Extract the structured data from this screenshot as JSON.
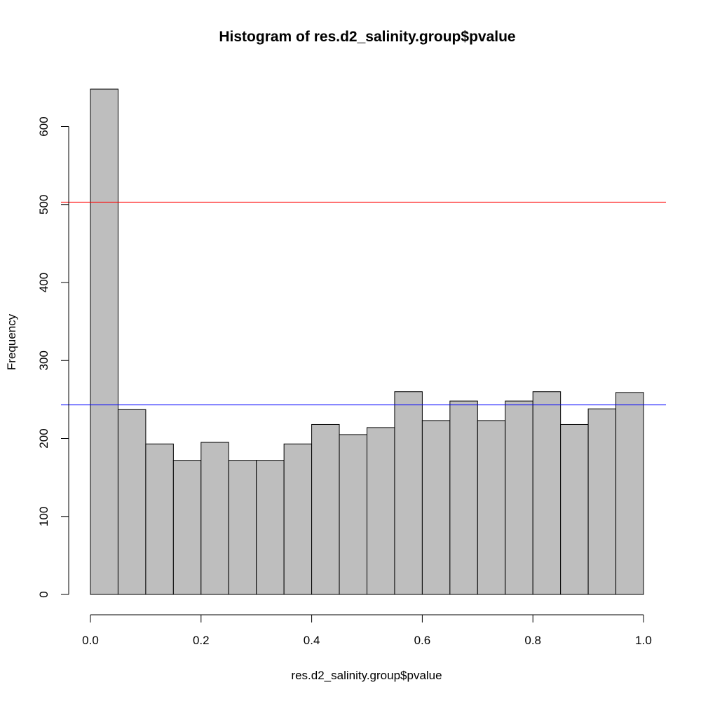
{
  "chart_data": {
    "type": "bar",
    "title": "Histogram of res.d2_salinity.group$pvalue",
    "xlabel": "res.d2_salinity.group$pvalue",
    "ylabel": "Frequency",
    "bin_edges": [
      0.0,
      0.05,
      0.1,
      0.15,
      0.2,
      0.25,
      0.3,
      0.35,
      0.4,
      0.45,
      0.5,
      0.55,
      0.6,
      0.65,
      0.7,
      0.75,
      0.8,
      0.85,
      0.9,
      0.95,
      1.0
    ],
    "values": [
      648,
      237,
      193,
      172,
      195,
      172,
      172,
      193,
      218,
      205,
      214,
      260,
      223,
      248,
      223,
      248,
      260,
      218,
      238,
      259
    ],
    "xlim": [
      0,
      1
    ],
    "ylim": [
      0,
      648
    ],
    "x_ticks": [
      "0.0",
      "0.2",
      "0.4",
      "0.6",
      "0.8",
      "1.0"
    ],
    "y_ticks": [
      "0",
      "100",
      "200",
      "300",
      "400",
      "500",
      "600"
    ],
    "hlines": [
      {
        "value": 503,
        "color": "#ff0000"
      },
      {
        "value": 243,
        "color": "#0000ff"
      }
    ],
    "bar_fill": "#bebebe",
    "bar_stroke": "#000000",
    "grid": false
  }
}
